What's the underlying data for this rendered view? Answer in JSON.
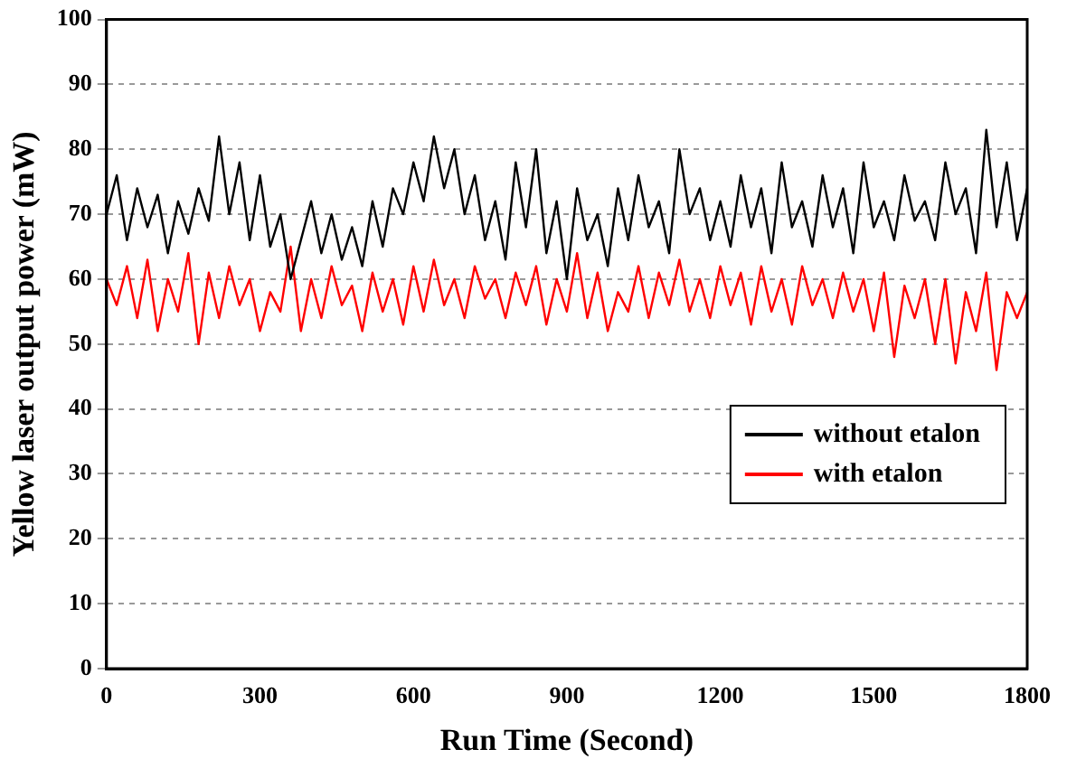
{
  "chart_data": {
    "type": "line",
    "xlabel": "Run Time (Second)",
    "ylabel": "Yellow laser output power (mW)",
    "x": [
      0,
      20,
      40,
      60,
      80,
      100,
      120,
      140,
      160,
      180,
      200,
      220,
      240,
      260,
      280,
      300,
      320,
      340,
      360,
      380,
      400,
      420,
      440,
      460,
      480,
      500,
      520,
      540,
      560,
      580,
      600,
      620,
      640,
      660,
      680,
      700,
      720,
      740,
      760,
      780,
      800,
      820,
      840,
      860,
      880,
      900,
      920,
      940,
      960,
      980,
      1000,
      1020,
      1040,
      1060,
      1080,
      1100,
      1120,
      1140,
      1160,
      1180,
      1200,
      1220,
      1240,
      1260,
      1280,
      1300,
      1320,
      1340,
      1360,
      1380,
      1400,
      1420,
      1440,
      1460,
      1480,
      1500,
      1520,
      1540,
      1560,
      1580,
      1600,
      1620,
      1640,
      1660,
      1680,
      1700,
      1720,
      1740,
      1760,
      1780,
      1800
    ],
    "series": [
      {
        "name": "without etalon",
        "color": "#000000",
        "values": [
          70,
          76,
          66,
          74,
          68,
          73,
          64,
          72,
          67,
          74,
          69,
          82,
          70,
          78,
          66,
          76,
          65,
          70,
          60,
          66,
          72,
          64,
          70,
          63,
          68,
          62,
          72,
          65,
          74,
          70,
          78,
          72,
          82,
          74,
          80,
          70,
          76,
          66,
          72,
          63,
          78,
          68,
          80,
          64,
          72,
          60,
          74,
          66,
          70,
          62,
          74,
          66,
          76,
          68,
          72,
          64,
          80,
          70,
          74,
          66,
          72,
          65,
          76,
          68,
          74,
          64,
          78,
          68,
          72,
          65,
          76,
          68,
          74,
          64,
          78,
          68,
          72,
          66,
          76,
          69,
          72,
          66,
          78,
          70,
          74,
          64,
          83,
          68,
          78,
          66,
          74
        ]
      },
      {
        "name": "with etalon",
        "color": "#ff0000",
        "values": [
          60,
          56,
          62,
          54,
          63,
          52,
          60,
          55,
          64,
          50,
          61,
          54,
          62,
          56,
          60,
          52,
          58,
          55,
          65,
          52,
          60,
          54,
          62,
          56,
          59,
          52,
          61,
          55,
          60,
          53,
          62,
          55,
          63,
          56,
          60,
          54,
          62,
          57,
          60,
          54,
          61,
          56,
          62,
          53,
          60,
          55,
          64,
          54,
          61,
          52,
          58,
          55,
          62,
          54,
          61,
          56,
          63,
          55,
          60,
          54,
          62,
          56,
          61,
          53,
          62,
          55,
          60,
          53,
          62,
          56,
          60,
          54,
          61,
          55,
          60,
          52,
          61,
          48,
          59,
          54,
          60,
          50,
          60,
          47,
          58,
          52,
          61,
          46,
          58,
          54,
          58
        ]
      }
    ],
    "xlim": [
      0,
      1800
    ],
    "xticks": [
      0,
      300,
      600,
      900,
      1200,
      1500,
      1800
    ],
    "ylim": [
      0,
      100
    ],
    "yticks": [
      0,
      10,
      20,
      30,
      40,
      50,
      60,
      70,
      80,
      90,
      100
    ],
    "grid": "y",
    "legend": "right",
    "marker": "none",
    "line_style": "solid"
  }
}
